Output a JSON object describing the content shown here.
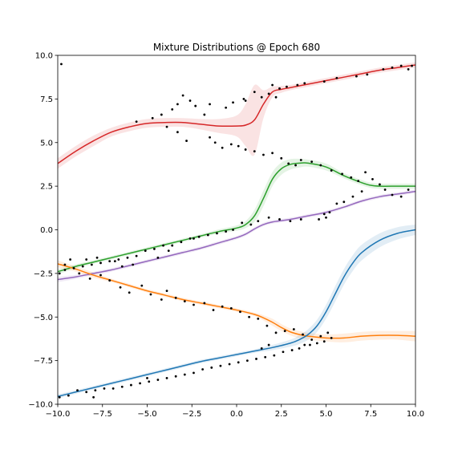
{
  "chart_data": {
    "type": "line",
    "title": "Mixture Distributions @ Epoch 680",
    "xlabel": "",
    "ylabel": "",
    "xlim": [
      -10,
      10
    ],
    "ylim": [
      -10,
      10
    ],
    "x_ticks": [
      -10,
      -7.5,
      -5,
      -2.5,
      0,
      2.5,
      5,
      7.5,
      10
    ],
    "y_ticks": [
      -10,
      -7.5,
      -5,
      -2.5,
      0,
      2.5,
      5,
      7.5,
      10
    ],
    "x_tick_labels": [
      "−10.0",
      "−7.5",
      "−5.0",
      "−2.5",
      "0.0",
      "2.5",
      "5.0",
      "7.5",
      "10.0"
    ],
    "y_tick_labels": [
      "−10.0",
      "−7.5",
      "−5.0",
      "−2.5",
      "0.0",
      "2.5",
      "5.0",
      "7.5",
      "10.0"
    ],
    "grid": false,
    "legend": "none",
    "point_color": "#000000",
    "series": [
      {
        "color": "#d62728",
        "x": [
          -10,
          -9,
          -8,
          -7,
          -6,
          -5,
          -4,
          -3,
          -2,
          -1,
          0,
          0.5,
          1,
          1.5,
          2,
          2.5,
          3,
          4,
          5,
          6,
          7,
          8,
          9,
          10
        ],
        "y": [
          3.8,
          4.5,
          5.1,
          5.6,
          5.9,
          6.1,
          6.15,
          6.15,
          6.05,
          5.95,
          5.95,
          6.0,
          6.3,
          7.2,
          7.9,
          8.05,
          8.15,
          8.35,
          8.55,
          8.75,
          8.95,
          9.15,
          9.3,
          9.45
        ],
        "band": [
          0.3,
          0.3,
          0.3,
          0.25,
          0.25,
          0.25,
          0.25,
          0.25,
          0.3,
          0.4,
          0.6,
          1.2,
          2.0,
          0.8,
          0.3,
          0.2,
          0.15,
          0.15,
          0.15,
          0.15,
          0.15,
          0.15,
          0.15,
          0.15
        ]
      },
      {
        "color": "#2ca02c",
        "x": [
          -10,
          -9,
          -8,
          -7,
          -6,
          -5,
          -4,
          -3,
          -2,
          -1,
          0,
          0.5,
          1,
          1.5,
          2,
          2.5,
          3,
          3.5,
          4,
          5,
          6,
          7,
          7.5,
          8,
          9,
          10
        ],
        "y": [
          -2.4,
          -2.1,
          -1.85,
          -1.6,
          -1.35,
          -1.1,
          -0.85,
          -0.6,
          -0.35,
          -0.1,
          0.1,
          0.3,
          0.8,
          1.8,
          2.9,
          3.5,
          3.75,
          3.82,
          3.82,
          3.6,
          3.1,
          2.7,
          2.55,
          2.5,
          2.5,
          2.5
        ],
        "band": [
          0.15,
          0.12,
          0.1,
          0.1,
          0.1,
          0.1,
          0.1,
          0.1,
          0.1,
          0.12,
          0.15,
          0.2,
          0.35,
          0.45,
          0.4,
          0.35,
          0.3,
          0.25,
          0.2,
          0.2,
          0.15,
          0.15,
          0.15,
          0.15,
          0.15,
          0.15
        ]
      },
      {
        "color": "#9467bd",
        "x": [
          -10,
          -9,
          -8,
          -7,
          -6,
          -5,
          -4,
          -3,
          -2,
          -1,
          0,
          0.5,
          1,
          1.5,
          2,
          3,
          4,
          5,
          6,
          7,
          8,
          9,
          10
        ],
        "y": [
          -2.85,
          -2.7,
          -2.5,
          -2.3,
          -2.05,
          -1.8,
          -1.55,
          -1.3,
          -1.05,
          -0.75,
          -0.45,
          -0.25,
          0.05,
          0.3,
          0.45,
          0.6,
          0.8,
          1.0,
          1.3,
          1.65,
          1.9,
          2.05,
          2.2
        ],
        "band": [
          0.15,
          0.12,
          0.1,
          0.1,
          0.1,
          0.1,
          0.1,
          0.1,
          0.1,
          0.1,
          0.1,
          0.1,
          0.1,
          0.1,
          0.1,
          0.1,
          0.1,
          0.1,
          0.1,
          0.1,
          0.1,
          0.1,
          0.1
        ]
      },
      {
        "color": "#ff7f0e",
        "x": [
          -10,
          -9,
          -8,
          -7,
          -6,
          -5,
          -4,
          -3,
          -2,
          -1,
          0,
          1,
          1.5,
          2,
          2.5,
          3,
          3.5,
          4,
          5,
          6,
          7,
          8,
          9,
          10
        ],
        "y": [
          -1.95,
          -2.25,
          -2.6,
          -2.9,
          -3.2,
          -3.5,
          -3.75,
          -4.0,
          -4.2,
          -4.4,
          -4.6,
          -4.85,
          -5.05,
          -5.3,
          -5.6,
          -5.85,
          -6.0,
          -6.1,
          -6.2,
          -6.2,
          -6.1,
          -6.05,
          -6.05,
          -6.1
        ],
        "band": [
          0.2,
          0.15,
          0.15,
          0.1,
          0.1,
          0.1,
          0.1,
          0.1,
          0.1,
          0.1,
          0.1,
          0.1,
          0.15,
          0.2,
          0.2,
          0.2,
          0.2,
          0.2,
          0.2,
          0.25,
          0.25,
          0.25,
          0.25,
          0.3
        ]
      },
      {
        "color": "#1f77b4",
        "x": [
          -10,
          -9,
          -8,
          -7,
          -6,
          -5,
          -4,
          -3,
          -2,
          -1,
          0,
          1,
          2,
          3,
          3.5,
          4,
          4.5,
          5,
          5.5,
          6,
          6.5,
          7,
          8,
          9,
          10
        ],
        "y": [
          -9.55,
          -9.3,
          -9.05,
          -8.8,
          -8.55,
          -8.3,
          -8.05,
          -7.8,
          -7.55,
          -7.35,
          -7.15,
          -6.95,
          -6.75,
          -6.5,
          -6.3,
          -6.0,
          -5.5,
          -4.7,
          -3.7,
          -2.7,
          -1.9,
          -1.3,
          -0.6,
          -0.2,
          0.0
        ],
        "band": [
          0.12,
          0.1,
          0.1,
          0.1,
          0.1,
          0.1,
          0.1,
          0.1,
          0.1,
          0.1,
          0.1,
          0.1,
          0.15,
          0.2,
          0.25,
          0.3,
          0.35,
          0.4,
          0.45,
          0.45,
          0.45,
          0.45,
          0.4,
          0.35,
          0.3
        ]
      }
    ],
    "points": [
      [
        -9.8,
        9.5
      ],
      [
        9.2,
        9.4
      ],
      [
        9.6,
        9.2
      ],
      [
        8.7,
        9.3
      ],
      [
        8.2,
        9.2
      ],
      [
        9.8,
        9.4
      ],
      [
        7.3,
        8.9
      ],
      [
        6.7,
        8.8
      ],
      [
        5.6,
        8.7
      ],
      [
        4.9,
        8.5
      ],
      [
        3.8,
        8.4
      ],
      [
        3.4,
        8.3
      ],
      [
        2.8,
        8.2
      ],
      [
        2.4,
        8.1
      ],
      [
        2.0,
        8.3
      ],
      [
        2.2,
        7.6
      ],
      [
        1.8,
        7.8
      ],
      [
        1.4,
        7.6
      ],
      [
        1.0,
        7.9
      ],
      [
        0.4,
        7.5
      ],
      [
        0.5,
        7.4
      ],
      [
        -0.2,
        7.3
      ],
      [
        -0.6,
        7.0
      ],
      [
        -1.5,
        7.2
      ],
      [
        -1.8,
        6.6
      ],
      [
        -2.3,
        7.1
      ],
      [
        -2.6,
        7.4
      ],
      [
        -3.0,
        7.7
      ],
      [
        -3.3,
        7.2
      ],
      [
        -3.6,
        6.9
      ],
      [
        -4.2,
        6.6
      ],
      [
        -4.7,
        6.4
      ],
      [
        -5.6,
        6.2
      ],
      [
        -3.9,
        5.9
      ],
      [
        -3.3,
        5.6
      ],
      [
        -2.8,
        5.1
      ],
      [
        -1.5,
        5.3
      ],
      [
        -1.2,
        5.0
      ],
      [
        -0.8,
        4.7
      ],
      [
        -0.3,
        4.9
      ],
      [
        0.1,
        4.8
      ],
      [
        0.5,
        4.6
      ],
      [
        1.0,
        4.5
      ],
      [
        1.5,
        4.3
      ],
      [
        2.0,
        4.4
      ],
      [
        2.5,
        4.1
      ],
      [
        2.9,
        3.8
      ],
      [
        3.3,
        3.7
      ],
      [
        3.6,
        4.0
      ],
      [
        4.2,
        3.9
      ],
      [
        4.7,
        3.7
      ],
      [
        5.3,
        3.4
      ],
      [
        5.9,
        3.2
      ],
      [
        6.4,
        3.0
      ],
      [
        6.8,
        2.8
      ],
      [
        7.2,
        3.3
      ],
      [
        7.6,
        2.9
      ],
      [
        8.0,
        2.6
      ],
      [
        8.3,
        2.3
      ],
      [
        8.7,
        2.0
      ],
      [
        9.2,
        1.9
      ],
      [
        9.6,
        2.3
      ],
      [
        7.0,
        2.2
      ],
      [
        6.5,
        1.9
      ],
      [
        6.0,
        1.6
      ],
      [
        5.6,
        1.5
      ],
      [
        5.2,
        1.0
      ],
      [
        4.9,
        0.9
      ],
      [
        4.6,
        0.6
      ],
      [
        5.0,
        0.7
      ],
      [
        3.6,
        0.6
      ],
      [
        3.0,
        0.5
      ],
      [
        2.4,
        0.6
      ],
      [
        1.8,
        0.7
      ],
      [
        1.2,
        0.5
      ],
      [
        0.8,
        0.3
      ],
      [
        0.3,
        0.4
      ],
      [
        -0.2,
        0.0
      ],
      [
        -0.6,
        -0.1
      ],
      [
        -1.1,
        -0.2
      ],
      [
        -1.6,
        -0.3
      ],
      [
        -2.1,
        -0.4
      ],
      [
        -2.6,
        -0.5
      ],
      [
        -3.1,
        -0.7
      ],
      [
        -3.6,
        -0.9
      ],
      [
        -4.1,
        -0.9
      ],
      [
        -4.6,
        -1.1
      ],
      [
        -5.1,
        -1.2
      ],
      [
        -5.6,
        -1.5
      ],
      [
        -6.1,
        -1.6
      ],
      [
        -6.6,
        -1.7
      ],
      [
        -7.1,
        -1.8
      ],
      [
        -7.6,
        -1.9
      ],
      [
        -8.1,
        -2.0
      ],
      [
        -8.6,
        -2.1
      ],
      [
        -9.1,
        -2.2
      ],
      [
        -9.6,
        -2.3
      ],
      [
        -9.9,
        -2.5
      ],
      [
        -9.3,
        -1.7
      ],
      [
        -8.4,
        -1.7
      ],
      [
        -7.8,
        -1.6
      ],
      [
        -6.8,
        -1.8
      ],
      [
        -6.4,
        -2.1
      ],
      [
        -5.8,
        -2.0
      ],
      [
        -4.4,
        -1.6
      ],
      [
        -3.8,
        -1.2
      ],
      [
        -2.4,
        -0.5
      ],
      [
        -9.6,
        -2.0
      ],
      [
        -8.8,
        -2.5
      ],
      [
        -8.2,
        -2.8
      ],
      [
        -7.6,
        -2.6
      ],
      [
        -7.1,
        -2.9
      ],
      [
        -6.5,
        -3.3
      ],
      [
        -6.0,
        -3.6
      ],
      [
        -5.3,
        -3.2
      ],
      [
        -4.8,
        -3.7
      ],
      [
        -4.2,
        -4.0
      ],
      [
        -3.9,
        -3.5
      ],
      [
        -3.4,
        -3.9
      ],
      [
        -2.9,
        -4.1
      ],
      [
        -2.4,
        -4.3
      ],
      [
        -1.8,
        -4.2
      ],
      [
        -1.3,
        -4.6
      ],
      [
        -0.8,
        -4.4
      ],
      [
        -0.3,
        -4.5
      ],
      [
        0.2,
        -4.7
      ],
      [
        0.7,
        -5.0
      ],
      [
        1.2,
        -5.1
      ],
      [
        1.7,
        -5.5
      ],
      [
        2.2,
        -5.9
      ],
      [
        2.7,
        -5.8
      ],
      [
        3.2,
        -5.7
      ],
      [
        3.7,
        -6.0
      ],
      [
        4.2,
        -6.3
      ],
      [
        4.7,
        -6.1
      ],
      [
        5.1,
        -5.9
      ],
      [
        5.3,
        -6.2
      ],
      [
        4.9,
        -6.4
      ],
      [
        4.5,
        -6.5
      ],
      [
        4.1,
        -6.6
      ],
      [
        3.8,
        -6.6
      ],
      [
        3.5,
        -6.8
      ],
      [
        3.1,
        -6.9
      ],
      [
        2.6,
        -7.0
      ],
      [
        2.1,
        -7.2
      ],
      [
        1.6,
        -7.3
      ],
      [
        1.1,
        -7.4
      ],
      [
        0.6,
        -7.5
      ],
      [
        0.1,
        -7.6
      ],
      [
        -0.4,
        -7.7
      ],
      [
        -0.9,
        -7.8
      ],
      [
        -1.4,
        -7.9
      ],
      [
        -1.9,
        -8.0
      ],
      [
        -2.4,
        -8.2
      ],
      [
        -2.9,
        -8.3
      ],
      [
        -3.4,
        -8.4
      ],
      [
        -3.9,
        -8.5
      ],
      [
        -4.4,
        -8.6
      ],
      [
        -4.9,
        -8.7
      ],
      [
        -5.4,
        -8.8
      ],
      [
        -5.9,
        -8.9
      ],
      [
        -6.4,
        -9.0
      ],
      [
        -6.9,
        -9.1
      ],
      [
        -7.4,
        -9.1
      ],
      [
        -7.9,
        -9.2
      ],
      [
        -8.4,
        -9.3
      ],
      [
        -8.9,
        -9.2
      ],
      [
        -9.4,
        -9.5
      ],
      [
        -9.9,
        -9.6
      ],
      [
        -8.0,
        -9.6
      ],
      [
        -5.0,
        -8.5
      ],
      [
        1.4,
        -6.8
      ],
      [
        1.8,
        -6.6
      ]
    ]
  }
}
